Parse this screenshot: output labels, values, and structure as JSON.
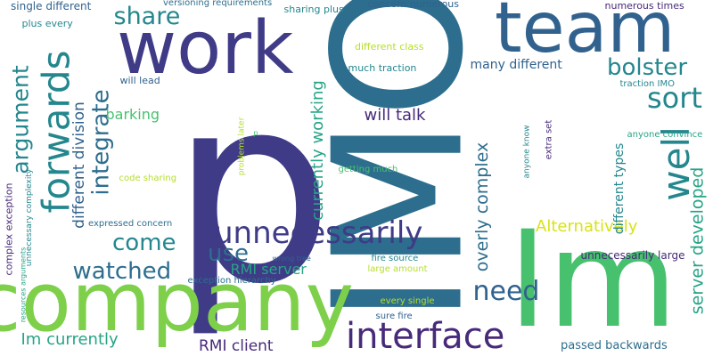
{
  "palette": {
    "indigo": "#3f3b87",
    "purple": "#472a7a",
    "blue": "#31628e",
    "steel": "#2d6e8e",
    "teal": "#24878e",
    "sea": "#27a486",
    "green": "#47c16e",
    "lime": "#7ed04b",
    "yellow": "#b5de2b",
    "bright": "#d8e219"
  },
  "words": [
    {
      "id": "p",
      "text": "p"
    },
    {
      "id": "imo",
      "text": "IMO"
    },
    {
      "id": "im",
      "text": "Im"
    },
    {
      "id": "company",
      "text": "company"
    },
    {
      "id": "work",
      "text": "work"
    },
    {
      "id": "team",
      "text": "team"
    },
    {
      "id": "interface",
      "text": "interface"
    },
    {
      "id": "unnecessarily",
      "text": "unnecessarily"
    },
    {
      "id": "forwards",
      "text": "forwards"
    },
    {
      "id": "argument",
      "text": "argument"
    },
    {
      "id": "well",
      "text": "well"
    },
    {
      "id": "bolster",
      "text": "bolster"
    },
    {
      "id": "sort",
      "text": "sort"
    },
    {
      "id": "need",
      "text": "need"
    },
    {
      "id": "share",
      "text": "share"
    },
    {
      "id": "integrate",
      "text": "integrate"
    },
    {
      "id": "watched",
      "text": "watched"
    },
    {
      "id": "come",
      "text": "come"
    },
    {
      "id": "use",
      "text": "use"
    },
    {
      "id": "currently_working",
      "text": "currently working"
    },
    {
      "id": "overly_complex",
      "text": "overly complex"
    },
    {
      "id": "server_developed",
      "text": "server developed"
    },
    {
      "id": "alternatively",
      "text": "Alternatively"
    },
    {
      "id": "different_division",
      "text": "different division"
    },
    {
      "id": "will_talk",
      "text": "will talk"
    },
    {
      "id": "im_currently",
      "text": "Im currently"
    },
    {
      "id": "rmi_client",
      "text": "RMI client"
    },
    {
      "id": "rmi_server",
      "text": "RMI server"
    },
    {
      "id": "barking",
      "text": "barking"
    },
    {
      "id": "different_types",
      "text": "different types"
    },
    {
      "id": "many_different",
      "text": "many different"
    },
    {
      "id": "passed_backwards",
      "text": "passed backwards"
    },
    {
      "id": "unnecessarily_large",
      "text": "unnecessarily large"
    },
    {
      "id": "numerous_times",
      "text": "numerous times"
    },
    {
      "id": "concern_numerous",
      "text": "concern numerous"
    },
    {
      "id": "sharing_plus",
      "text": "sharing plus"
    },
    {
      "id": "versioning_requirements",
      "text": "versioning requirements"
    },
    {
      "id": "single_different",
      "text": "single different"
    },
    {
      "id": "plus_every",
      "text": "plus every"
    },
    {
      "id": "will_lead",
      "text": "will lead"
    },
    {
      "id": "different_class",
      "text": "different class"
    },
    {
      "id": "much_traction",
      "text": "much traction"
    },
    {
      "id": "traction_imo",
      "text": "traction IMO"
    },
    {
      "id": "anyone_convince",
      "text": "anyone convince"
    },
    {
      "id": "anyone_know",
      "text": "anyone know"
    },
    {
      "id": "extra_set",
      "text": "extra set"
    },
    {
      "id": "getting_much",
      "text": "getting much"
    },
    {
      "id": "code_sharing",
      "text": "code sharing"
    },
    {
      "id": "expressed_concern",
      "text": "expressed concern"
    },
    {
      "id": "complex_exception",
      "text": "complex exception"
    },
    {
      "id": "unnecessary_complexity",
      "text": "unnecessary complexity"
    },
    {
      "id": "resources_arguments",
      "text": "resources arguments"
    },
    {
      "id": "exception_hierarchy",
      "text": "exception hierarchy"
    },
    {
      "id": "wrong_tree",
      "text": "wrong tree"
    },
    {
      "id": "fire_source",
      "text": "fire source"
    },
    {
      "id": "large_amount",
      "text": "large amount"
    },
    {
      "id": "every_single",
      "text": "every single"
    },
    {
      "id": "sure_fire",
      "text": "sure fire"
    },
    {
      "id": "problems_later",
      "text": "problems later"
    },
    {
      "id": "p_small",
      "text": "p"
    }
  ]
}
